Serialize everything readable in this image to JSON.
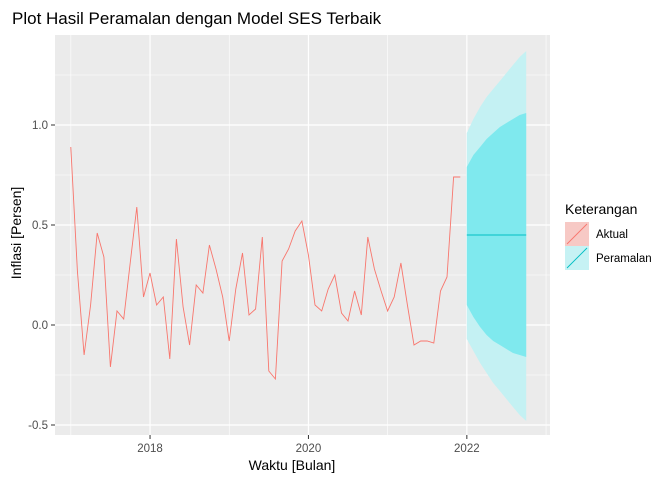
{
  "chart_data": {
    "type": "line",
    "title": "Plot Hasil Peramalan dengan Model SES Terbaik",
    "xlabel": "Waktu [Bulan]",
    "ylabel": "Inflasi [Persen]",
    "xlim": [
      2016.8,
      2023.05
    ],
    "ylim": [
      -0.55,
      1.45
    ],
    "x_ticks": [
      2018,
      2020,
      2022
    ],
    "x_tick_labels": [
      "2018",
      "2020",
      "2022"
    ],
    "y_ticks": [
      -0.5,
      0.0,
      0.5,
      1.0
    ],
    "y_tick_labels": [
      "-0.5",
      "0.0",
      "0.5",
      "1.0"
    ],
    "grid": true,
    "legend": {
      "title": "Keterangan",
      "position": "right",
      "entries": [
        "Aktual",
        "Peramalan"
      ]
    },
    "colors": {
      "panel": "#ebebeb",
      "grid": "#ffffff",
      "aktual": "#f8766d",
      "peramalan": "#00bfc4",
      "band80": "#7fe9ee",
      "band95": "#c4f1f3",
      "legend_key_aktual": "#f7c9c5",
      "legend_key_peramalan": "#c6f2f4"
    },
    "series": [
      {
        "name": "Aktual",
        "x": [
          2017.0,
          2017.083,
          2017.167,
          2017.25,
          2017.333,
          2017.417,
          2017.5,
          2017.583,
          2017.667,
          2017.75,
          2017.833,
          2017.917,
          2018.0,
          2018.083,
          2018.167,
          2018.25,
          2018.333,
          2018.417,
          2018.5,
          2018.583,
          2018.667,
          2018.75,
          2018.833,
          2018.917,
          2019.0,
          2019.083,
          2019.167,
          2019.25,
          2019.333,
          2019.417,
          2019.5,
          2019.583,
          2019.667,
          2019.75,
          2019.833,
          2019.917,
          2020.0,
          2020.083,
          2020.167,
          2020.25,
          2020.333,
          2020.417,
          2020.5,
          2020.583,
          2020.667,
          2020.75,
          2020.833,
          2020.917,
          2021.0,
          2021.083,
          2021.167,
          2021.25,
          2021.333,
          2021.417,
          2021.5,
          2021.583,
          2021.667,
          2021.75,
          2021.833,
          2021.917
        ],
        "values": [
          0.89,
          0.27,
          -0.15,
          0.1,
          0.46,
          0.34,
          -0.21,
          0.07,
          0.03,
          0.31,
          0.59,
          0.14,
          0.26,
          0.1,
          0.14,
          -0.17,
          0.43,
          0.09,
          -0.1,
          0.2,
          0.16,
          0.4,
          0.28,
          0.14,
          -0.08,
          0.18,
          0.36,
          0.05,
          0.08,
          0.44,
          -0.23,
          -0.27,
          0.32,
          0.38,
          0.47,
          0.52,
          0.35,
          0.1,
          0.07,
          0.18,
          0.25,
          0.06,
          0.02,
          0.17,
          0.05,
          0.44,
          0.28,
          0.17,
          0.07,
          0.14,
          0.31,
          0.1,
          -0.1,
          -0.08,
          -0.08,
          -0.09,
          0.17,
          0.24,
          0.74,
          0.74
        ]
      },
      {
        "name": "Peramalan",
        "x": [
          2022.0,
          2022.083,
          2022.167,
          2022.25,
          2022.333,
          2022.417,
          2022.5,
          2022.583,
          2022.667,
          2022.75
        ],
        "values": [
          0.45,
          0.45,
          0.45,
          0.45,
          0.45,
          0.45,
          0.45,
          0.45,
          0.45,
          0.45
        ],
        "lo80": [
          0.1,
          0.04,
          -0.01,
          -0.05,
          -0.08,
          -0.1,
          -0.12,
          -0.14,
          -0.15,
          -0.16
        ],
        "hi80": [
          0.79,
          0.85,
          0.89,
          0.93,
          0.96,
          0.99,
          1.01,
          1.03,
          1.05,
          1.06
        ],
        "lo95": [
          -0.07,
          -0.13,
          -0.19,
          -0.24,
          -0.29,
          -0.33,
          -0.37,
          -0.41,
          -0.45,
          -0.48
        ],
        "hi95": [
          0.96,
          1.03,
          1.09,
          1.14,
          1.18,
          1.22,
          1.26,
          1.3,
          1.34,
          1.37
        ]
      }
    ]
  }
}
